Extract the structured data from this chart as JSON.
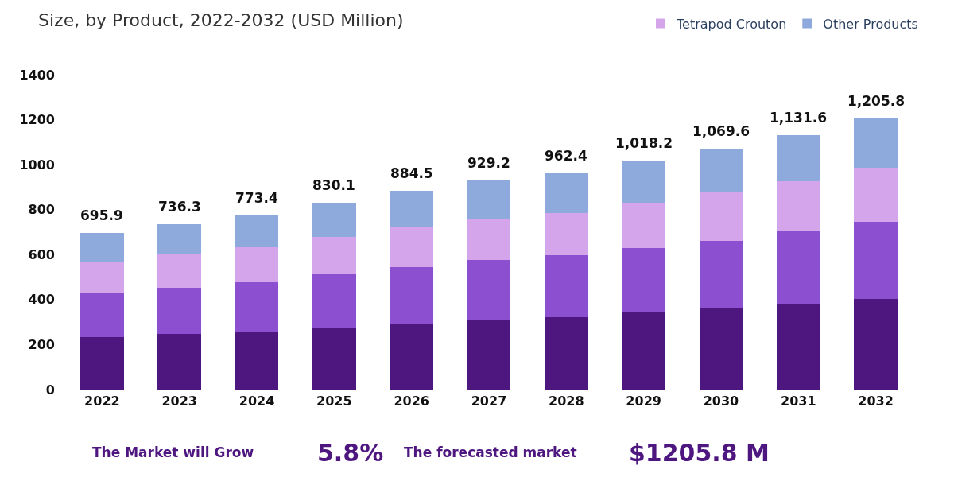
{
  "chart_data": {
    "type": "bar",
    "stacked": true,
    "title": "Size, by Product, 2022-2032 (USD Million)",
    "categories": [
      "2022",
      "2023",
      "2024",
      "2025",
      "2026",
      "2027",
      "2028",
      "2029",
      "2030",
      "2031",
      "2032"
    ],
    "series": [
      {
        "color": "#4e1780",
        "values": [
          233,
          246,
          257,
          277,
          295,
          311,
          321,
          342,
          360,
          379,
          403
        ]
      },
      {
        "color": "#8b4fcf",
        "values": [
          198,
          208,
          221,
          234,
          250,
          265,
          276,
          289,
          301,
          323,
          342
        ]
      },
      {
        "name": "Tetrapod Crouton",
        "color": "#d4a5ea",
        "values": [
          135,
          148,
          154,
          167,
          177,
          184,
          189,
          199,
          215,
          225,
          243
        ]
      },
      {
        "name": "Other Products",
        "color": "#8ea9db",
        "values": [
          129.9,
          134.3,
          141.4,
          152.1,
          162.5,
          169.2,
          176.4,
          188.2,
          193.6,
          204.6,
          217.8
        ]
      }
    ],
    "totals": [
      "695.9",
      "736.3",
      "773.4",
      "830.1",
      "884.5",
      "929.2",
      "962.4",
      "1,018.2",
      "1,069.6",
      "1,131.6",
      "1,205.8"
    ],
    "ylim": [
      0,
      1400
    ],
    "yticks": [
      0,
      200,
      400,
      600,
      800,
      1000,
      1200,
      1400
    ],
    "legend": "top right",
    "annotations": [
      "The Market will Grow",
      "5.8%",
      "The forecasted market",
      "$1205.8 M"
    ]
  }
}
